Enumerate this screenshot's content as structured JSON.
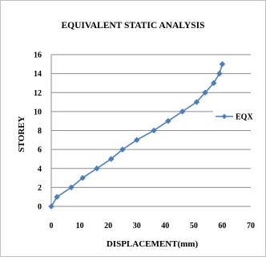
{
  "chart_data": {
    "type": "line",
    "title": "EQUIVALENT STATIC ANALYSIS",
    "xlabel": "DISPLACEMENT(mm)",
    "ylabel": "STOREY",
    "xlim": [
      0,
      70
    ],
    "ylim": [
      0,
      16
    ],
    "x_ticks": [
      0,
      10,
      20,
      30,
      40,
      50,
      60,
      70
    ],
    "y_ticks": [
      0,
      2,
      4,
      6,
      8,
      10,
      12,
      14,
      16
    ],
    "grid": "horizontal",
    "legend_position": "right",
    "series": [
      {
        "name": "EQX",
        "color": "#4a7ebb",
        "marker": "diamond",
        "x": [
          0,
          2,
          7,
          11,
          16,
          21,
          25,
          30,
          36,
          41,
          46,
          51,
          54,
          57,
          59,
          60
        ],
        "y": [
          0,
          1,
          2,
          3,
          4,
          5,
          6,
          7,
          8,
          9,
          10,
          11,
          12,
          13,
          14,
          15
        ]
      }
    ]
  }
}
